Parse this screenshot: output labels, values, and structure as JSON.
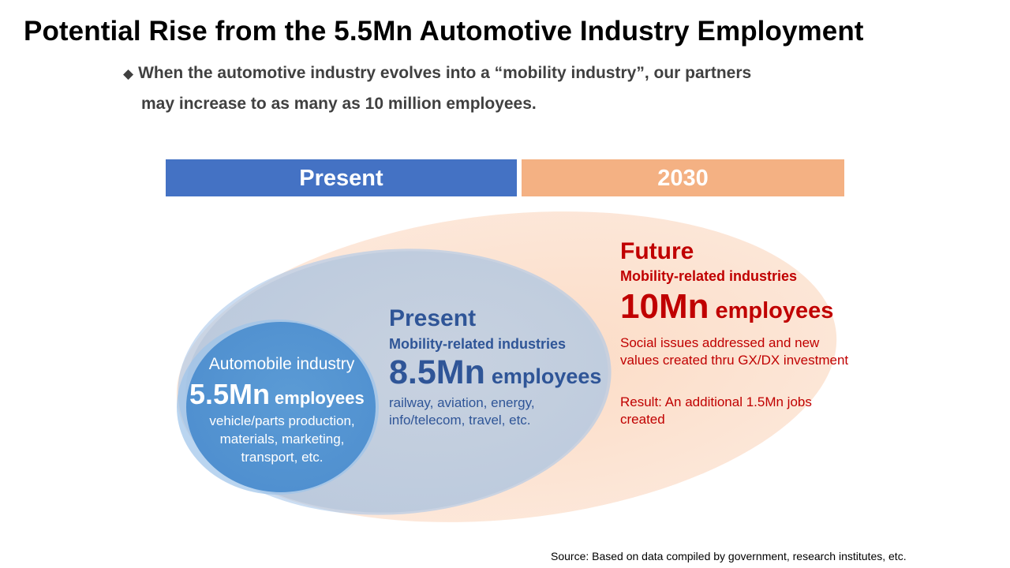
{
  "title": "Potential Rise from the 5.5Mn Automotive Industry Employment",
  "bullet": {
    "mark": "◆",
    "line1": "When the automotive industry evolves into a “mobility industry”, our partners",
    "line2": "may increase to as many as 10 million employees."
  },
  "headers": {
    "present": "Present",
    "future": "2030"
  },
  "future": {
    "heading": "Future",
    "subheading": "Mobility-related  industries",
    "number": "10Mn",
    "unit": "employees",
    "description": "Social issues addressed and new values created thru GX/DX investment",
    "result": "Result: An additional 1.5Mn jobs created"
  },
  "present": {
    "heading": "Present",
    "subheading": "Mobility-related  industries",
    "number": "8.5Mn",
    "unit": "employees",
    "description": "railway, aviation, energy, info/telecom, travel, etc."
  },
  "automobile": {
    "heading": "Automobile industry",
    "number": "5.5Mn",
    "unit": "employees",
    "description": "vehicle/parts production, materials, marketing, transport, etc."
  },
  "source": "Source: Based on data compiled by government, research institutes, etc.",
  "colors": {
    "present_header": "#4472c4",
    "future_header": "#f4b183",
    "future_ellipse": "#fbe3d3",
    "present_ellipse": "#c3cede",
    "auto_circle": "#5b9bd5",
    "future_text": "#c00000",
    "present_text": "#2f5597"
  }
}
